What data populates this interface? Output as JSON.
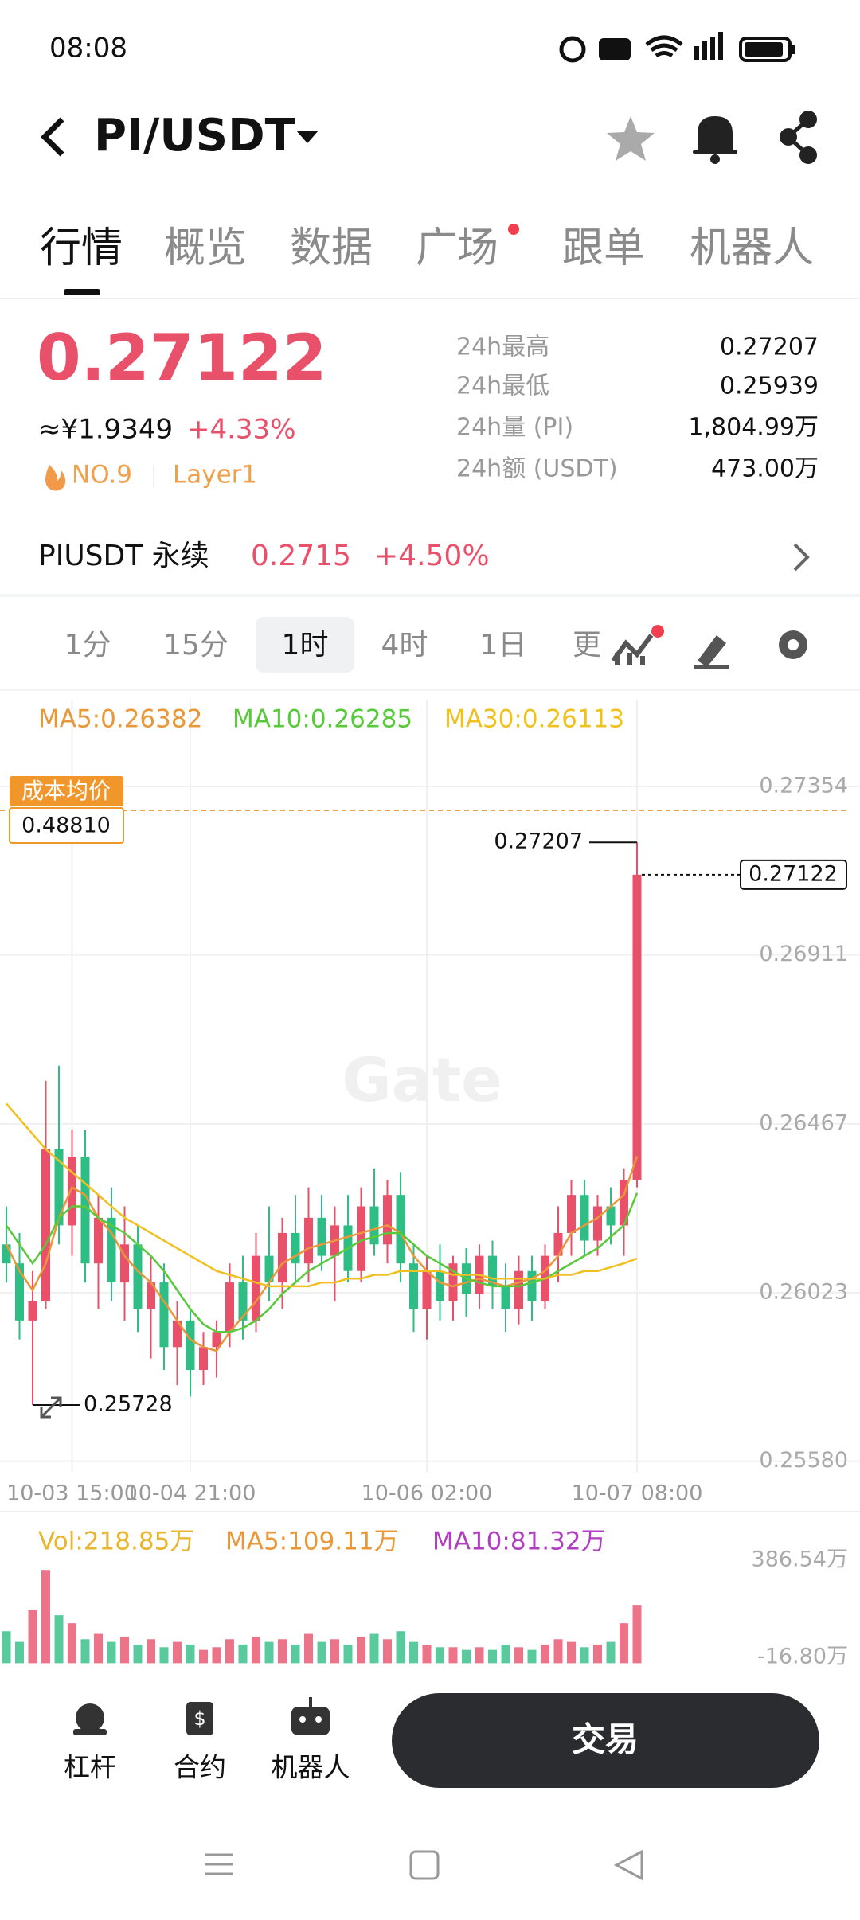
{
  "status_bar": {
    "time": "08:08"
  },
  "header": {
    "pair": "PI/USDT"
  },
  "tabs": [
    "行情",
    "概览",
    "数据",
    "广场",
    "跟单",
    "机器人"
  ],
  "ticker": {
    "price": "0.27122",
    "cny": "≈¥1.9349",
    "change": "+4.33%",
    "rank": "NO.9",
    "tag": "Layer1",
    "stats": [
      {
        "label": "24h最高",
        "value": "0.27207"
      },
      {
        "label": "24h最低",
        "value": "0.25939"
      },
      {
        "label": "24h量 (PI)",
        "value": "1,804.99万"
      },
      {
        "label": "24h额 (USDT)",
        "value": "473.00万"
      }
    ]
  },
  "perp": {
    "name": "PIUSDT 永续",
    "price": "0.2715",
    "change": "+4.50%"
  },
  "intervals": [
    "1分",
    "15分",
    "1时",
    "4时",
    "1日",
    "更"
  ],
  "selected_interval": 2,
  "chart_data": {
    "type": "candlestick",
    "up_color": "#e9506a",
    "down_color": "#2ebd85",
    "grid": true,
    "series": [
      {
        "name": "MA5:0.26382",
        "color": "#e8983a",
        "values": [
          0.2615,
          0.2608,
          0.2603,
          0.261,
          0.2622,
          0.263,
          0.2628,
          0.2622,
          0.2618,
          0.2612,
          0.2608,
          0.2605,
          0.26,
          0.2595,
          0.259,
          0.2588,
          0.2587,
          0.2592,
          0.2596,
          0.26,
          0.2605,
          0.261,
          0.2612,
          0.2614,
          0.2615,
          0.2616,
          0.2617,
          0.2618,
          0.2619,
          0.262,
          0.2618,
          0.2612,
          0.2608,
          0.2605,
          0.2604,
          0.2605,
          0.2606,
          0.2605,
          0.2604,
          0.2605,
          0.2606,
          0.2608,
          0.2612,
          0.2618,
          0.262,
          0.2622,
          0.2625,
          0.2628,
          0.26382
        ]
      },
      {
        "name": "MA10:0.26285",
        "color": "#58c93a",
        "values": [
          0.262,
          0.2615,
          0.261,
          0.2615,
          0.2622,
          0.2625,
          0.2625,
          0.2622,
          0.262,
          0.2618,
          0.2615,
          0.2612,
          0.2608,
          0.2603,
          0.2598,
          0.2594,
          0.2592,
          0.2592,
          0.2593,
          0.2595,
          0.2598,
          0.2602,
          0.2605,
          0.2608,
          0.261,
          0.2612,
          0.2614,
          0.2616,
          0.2617,
          0.2618,
          0.2618,
          0.2615,
          0.2612,
          0.261,
          0.2608,
          0.2606,
          0.2605,
          0.2604,
          0.2604,
          0.2604,
          0.2605,
          0.2606,
          0.2608,
          0.261,
          0.2612,
          0.2614,
          0.2617,
          0.262,
          0.26285
        ]
      },
      {
        "name": "MA30:0.26113",
        "color": "#f0c020",
        "values": [
          0.2652,
          0.2648,
          0.2644,
          0.264,
          0.2637,
          0.2634,
          0.2631,
          0.2628,
          0.2625,
          0.2622,
          0.262,
          0.2618,
          0.2616,
          0.2614,
          0.2612,
          0.261,
          0.2608,
          0.2607,
          0.2606,
          0.2605,
          0.2604,
          0.2604,
          0.2604,
          0.2604,
          0.2605,
          0.2605,
          0.2606,
          0.2606,
          0.2607,
          0.2607,
          0.2608,
          0.2608,
          0.2608,
          0.2608,
          0.2607,
          0.2607,
          0.2607,
          0.2606,
          0.2606,
          0.2606,
          0.2606,
          0.2606,
          0.2607,
          0.2607,
          0.2608,
          0.2608,
          0.2609,
          0.261,
          0.26113
        ]
      }
    ],
    "categories": [
      null,
      null,
      null,
      null,
      null,
      "10-03 15:00",
      null,
      null,
      null,
      null,
      null,
      null,
      null,
      null,
      "10-04 21:00",
      null,
      null,
      null,
      null,
      null,
      null,
      null,
      null,
      null,
      null,
      null,
      null,
      null,
      null,
      null,
      null,
      null,
      "10-06 02:00",
      null,
      null,
      null,
      null,
      null,
      null,
      null,
      null,
      null,
      null,
      null,
      null,
      null,
      null,
      null,
      "10-07 08:00"
    ],
    "candles": [
      [
        0.2615,
        0.2625,
        0.2605,
        0.261
      ],
      [
        0.261,
        0.2618,
        0.259,
        0.2595
      ],
      [
        0.2595,
        0.2608,
        0.25728,
        0.26
      ],
      [
        0.26,
        0.2658,
        0.2598,
        0.264
      ],
      [
        0.264,
        0.2662,
        0.2615,
        0.262
      ],
      [
        0.262,
        0.2645,
        0.2612,
        0.2638
      ],
      [
        0.2638,
        0.2645,
        0.2605,
        0.261
      ],
      [
        0.261,
        0.2628,
        0.2598,
        0.2622
      ],
      [
        0.2622,
        0.263,
        0.26,
        0.2605
      ],
      [
        0.2605,
        0.2625,
        0.2595,
        0.2615
      ],
      [
        0.2615,
        0.262,
        0.2592,
        0.2598
      ],
      [
        0.2598,
        0.2612,
        0.2585,
        0.2605
      ],
      [
        0.2605,
        0.261,
        0.2582,
        0.2588
      ],
      [
        0.2588,
        0.26,
        0.2578,
        0.2595
      ],
      [
        0.2595,
        0.2598,
        0.2575,
        0.2582
      ],
      [
        0.2582,
        0.2592,
        0.2578,
        0.2588
      ],
      [
        0.2588,
        0.2595,
        0.258,
        0.2592
      ],
      [
        0.2592,
        0.261,
        0.2588,
        0.2605
      ],
      [
        0.2605,
        0.2612,
        0.259,
        0.2595
      ],
      [
        0.2595,
        0.2618,
        0.2592,
        0.2612
      ],
      [
        0.2612,
        0.2625,
        0.26,
        0.2605
      ],
      [
        0.2605,
        0.2622,
        0.2598,
        0.2618
      ],
      [
        0.2618,
        0.2628,
        0.2605,
        0.261
      ],
      [
        0.261,
        0.263,
        0.2605,
        0.2622
      ],
      [
        0.2622,
        0.2628,
        0.2608,
        0.2612
      ],
      [
        0.2612,
        0.2625,
        0.26,
        0.262
      ],
      [
        0.262,
        0.2628,
        0.2605,
        0.2608
      ],
      [
        0.2608,
        0.263,
        0.2605,
        0.2625
      ],
      [
        0.2625,
        0.2635,
        0.2612,
        0.2615
      ],
      [
        0.2615,
        0.2632,
        0.261,
        0.2628
      ],
      [
        0.2628,
        0.2634,
        0.2605,
        0.261
      ],
      [
        0.261,
        0.2615,
        0.2592,
        0.2598
      ],
      [
        0.2598,
        0.2612,
        0.259,
        0.2608
      ],
      [
        0.2608,
        0.2615,
        0.2595,
        0.26
      ],
      [
        0.26,
        0.2612,
        0.2595,
        0.261
      ],
      [
        0.261,
        0.2614,
        0.2596,
        0.2602
      ],
      [
        0.2602,
        0.2615,
        0.2598,
        0.2612
      ],
      [
        0.2612,
        0.2616,
        0.2598,
        0.2604
      ],
      [
        0.2604,
        0.261,
        0.2592,
        0.2598
      ],
      [
        0.2598,
        0.2612,
        0.2594,
        0.2608
      ],
      [
        0.2608,
        0.2612,
        0.2595,
        0.26
      ],
      [
        0.26,
        0.2615,
        0.2598,
        0.2612
      ],
      [
        0.2612,
        0.2625,
        0.2605,
        0.2618
      ],
      [
        0.2618,
        0.2632,
        0.2612,
        0.2628
      ],
      [
        0.2628,
        0.2632,
        0.2612,
        0.2616
      ],
      [
        0.2616,
        0.2628,
        0.2612,
        0.2625
      ],
      [
        0.2625,
        0.263,
        0.2615,
        0.262
      ],
      [
        0.262,
        0.2635,
        0.2612,
        0.2632
      ],
      [
        0.2632,
        0.27207,
        0.263,
        0.27122
      ]
    ],
    "ylim": [
      0.2555,
      0.2758
    ],
    "yticks": [
      0.27354,
      0.26911,
      0.26467,
      0.26023,
      {
        "value": 0.2558,
        "label": "0.25580"
      }
    ],
    "annotations": {
      "cost_label": "成本均价",
      "cost_value": "0.48810",
      "high": "0.27207",
      "last": "0.27122",
      "low": "0.25728"
    },
    "watermark": "Gate"
  },
  "volume_chart": {
    "type": "bar",
    "legend": [
      {
        "text": "Vol:218.85万",
        "color": "#e8b530"
      },
      {
        "text": "MA5:109.11万",
        "color": "#e8983a"
      },
      {
        "text": "MA10:81.32万",
        "color": "#b03ec0"
      }
    ],
    "values": [
      120,
      80,
      200,
      350,
      180,
      150,
      90,
      110,
      80,
      100,
      70,
      90,
      60,
      80,
      70,
      50,
      60,
      90,
      70,
      100,
      80,
      90,
      70,
      110,
      80,
      90,
      70,
      100,
      110,
      90,
      120,
      80,
      70,
      60,
      60,
      50,
      60,
      50,
      70,
      60,
      50,
      70,
      90,
      80,
      60,
      70,
      80,
      150,
      218.85
    ],
    "ylim": [
      -16.8,
      386.54
    ],
    "yticks": [
      {
        "value": 386.54,
        "label": "386.54万"
      },
      {
        "value": -16.8,
        "label": "-16.80万"
      }
    ]
  },
  "bottom_bar": {
    "items": [
      "杠杆",
      "合约",
      "机器人"
    ],
    "trade": "交易"
  }
}
